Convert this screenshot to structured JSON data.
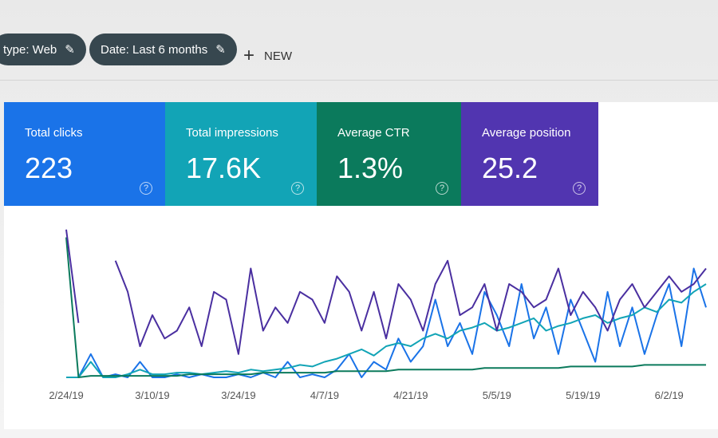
{
  "filters": [
    "type: Web",
    "Date: Last 6 months"
  ],
  "new_button": "NEW",
  "metrics": [
    {
      "label": "Total clicks",
      "value": "223"
    },
    {
      "label": "Total impressions",
      "value": "17.6K"
    },
    {
      "label": "Average CTR",
      "value": "1.3%"
    },
    {
      "label": "Average position",
      "value": "25.2"
    }
  ],
  "chart_data": {
    "type": "line",
    "categories": [
      "2/24/19",
      null,
      null,
      null,
      null,
      null,
      null,
      "3/10/19",
      null,
      null,
      null,
      null,
      null,
      null,
      "3/24/19",
      null,
      null,
      null,
      null,
      null,
      null,
      "4/7/19",
      null,
      null,
      null,
      null,
      null,
      null,
      "4/21/19",
      null,
      null,
      null,
      null,
      null,
      null,
      "5/5/19",
      null,
      null,
      null,
      null,
      null,
      null,
      "5/19/19",
      null,
      null,
      null,
      null,
      null,
      null,
      "6/2/19",
      null,
      null,
      null
    ],
    "ylim": [
      0,
      100
    ],
    "series": [
      {
        "name": "Total clicks",
        "color": "#1a73e8",
        "values": [
          0,
          0,
          15,
          0,
          2,
          0,
          10,
          0,
          0,
          2,
          0,
          2,
          0,
          0,
          2,
          0,
          3,
          0,
          10,
          0,
          2,
          0,
          5,
          15,
          0,
          10,
          5,
          25,
          10,
          20,
          50,
          20,
          35,
          15,
          55,
          40,
          20,
          60,
          25,
          45,
          15,
          50,
          30,
          10,
          55,
          20,
          45,
          15,
          40,
          60,
          20,
          70,
          45
        ]
      },
      {
        "name": "Total impressions",
        "color": "#12a4b6",
        "values": [
          0,
          0,
          10,
          0,
          0,
          2,
          5,
          2,
          2,
          3,
          3,
          2,
          3,
          4,
          3,
          5,
          4,
          5,
          6,
          8,
          7,
          10,
          12,
          15,
          18,
          14,
          20,
          22,
          20,
          25,
          28,
          25,
          30,
          32,
          35,
          30,
          32,
          35,
          38,
          30,
          33,
          35,
          38,
          40,
          35,
          38,
          40,
          45,
          42,
          50,
          48,
          55,
          60
        ]
      },
      {
        "name": "Average CTR",
        "color": "#0b7a5c",
        "values": [
          90,
          0,
          1,
          1,
          1,
          1,
          1,
          1,
          1,
          1,
          2,
          2,
          2,
          2,
          2,
          2,
          3,
          3,
          3,
          3,
          3,
          3,
          4,
          4,
          4,
          4,
          4,
          5,
          5,
          5,
          5,
          5,
          5,
          5,
          6,
          6,
          6,
          6,
          6,
          6,
          6,
          7,
          7,
          7,
          7,
          7,
          7,
          8,
          8,
          8,
          8,
          8,
          8
        ]
      },
      {
        "name": "Average position",
        "color": "#4a2fa0",
        "values": [
          95,
          35,
          null,
          null,
          75,
          55,
          20,
          40,
          25,
          30,
          45,
          20,
          55,
          50,
          15,
          70,
          30,
          45,
          35,
          55,
          50,
          35,
          65,
          55,
          30,
          55,
          25,
          60,
          50,
          30,
          60,
          75,
          40,
          45,
          60,
          30,
          60,
          55,
          45,
          50,
          70,
          40,
          55,
          45,
          30,
          50,
          60,
          45,
          55,
          65,
          55,
          60,
          70
        ]
      }
    ]
  }
}
